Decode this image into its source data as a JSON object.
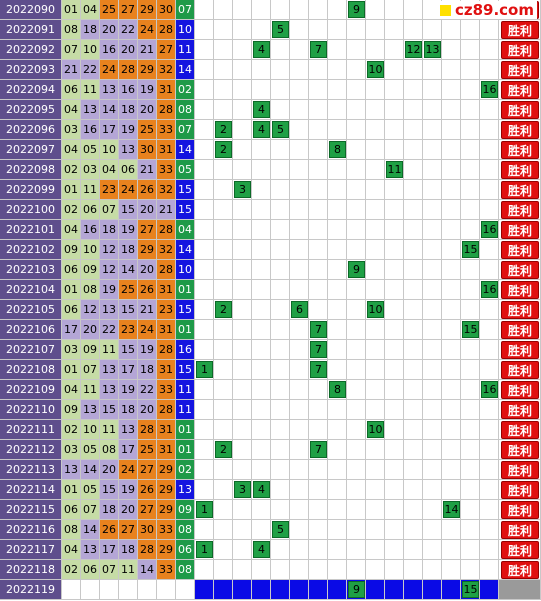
{
  "watermark": "cz89.com",
  "rows": [
    {
      "period": "2022090",
      "numbers": [
        "01",
        "04",
        "25",
        "27",
        "29",
        "30",
        "07"
      ],
      "marks": [
        "9"
      ],
      "result": "胜利"
    },
    {
      "period": "2022091",
      "numbers": [
        "08",
        "18",
        "20",
        "22",
        "24",
        "28",
        "10"
      ],
      "marks": [
        "5"
      ],
      "result": "胜利"
    },
    {
      "period": "2022092",
      "numbers": [
        "07",
        "10",
        "16",
        "20",
        "21",
        "27",
        "11"
      ],
      "marks": [
        "4",
        "7",
        "12",
        "13"
      ],
      "result": "胜利"
    },
    {
      "period": "2022093",
      "numbers": [
        "21",
        "22",
        "24",
        "28",
        "29",
        "32",
        "14"
      ],
      "marks": [
        "10"
      ],
      "result": "胜利"
    },
    {
      "period": "2022094",
      "numbers": [
        "06",
        "11",
        "13",
        "16",
        "19",
        "31",
        "02"
      ],
      "marks": [
        "16"
      ],
      "result": "胜利"
    },
    {
      "period": "2022095",
      "numbers": [
        "04",
        "13",
        "14",
        "18",
        "20",
        "28",
        "08"
      ],
      "marks": [
        "4"
      ],
      "result": "胜利"
    },
    {
      "period": "2022096",
      "numbers": [
        "03",
        "16",
        "17",
        "19",
        "25",
        "33",
        "07"
      ],
      "marks": [
        "2",
        "4",
        "5"
      ],
      "result": "胜利"
    },
    {
      "period": "2022097",
      "numbers": [
        "04",
        "05",
        "10",
        "13",
        "30",
        "31",
        "14"
      ],
      "marks": [
        "2",
        "8"
      ],
      "result": "胜利"
    },
    {
      "period": "2022098",
      "numbers": [
        "02",
        "03",
        "04",
        "06",
        "21",
        "33",
        "05"
      ],
      "marks": [
        "11"
      ],
      "result": "胜利"
    },
    {
      "period": "2022099",
      "numbers": [
        "01",
        "11",
        "23",
        "24",
        "26",
        "32",
        "15"
      ],
      "marks": [
        "3"
      ],
      "result": "胜利"
    },
    {
      "period": "2022100",
      "numbers": [
        "02",
        "06",
        "07",
        "15",
        "20",
        "21",
        "15"
      ],
      "marks": [],
      "result": "胜利"
    },
    {
      "period": "2022101",
      "numbers": [
        "04",
        "16",
        "18",
        "19",
        "27",
        "28",
        "04"
      ],
      "marks": [
        "16"
      ],
      "result": "胜利"
    },
    {
      "period": "2022102",
      "numbers": [
        "09",
        "10",
        "12",
        "18",
        "29",
        "32",
        "14"
      ],
      "marks": [
        "15"
      ],
      "result": "胜利"
    },
    {
      "period": "2022103",
      "numbers": [
        "06",
        "09",
        "12",
        "14",
        "20",
        "28",
        "10"
      ],
      "marks": [
        "9"
      ],
      "result": "胜利"
    },
    {
      "period": "2022104",
      "numbers": [
        "01",
        "08",
        "19",
        "25",
        "26",
        "31",
        "01"
      ],
      "marks": [
        "16"
      ],
      "result": "胜利"
    },
    {
      "period": "2022105",
      "numbers": [
        "06",
        "12",
        "13",
        "15",
        "21",
        "23",
        "15"
      ],
      "marks": [
        "2",
        "6",
        "10"
      ],
      "result": "胜利"
    },
    {
      "period": "2022106",
      "numbers": [
        "17",
        "20",
        "22",
        "23",
        "24",
        "31",
        "01"
      ],
      "marks": [
        "7",
        "15"
      ],
      "result": "胜利"
    },
    {
      "period": "2022107",
      "numbers": [
        "03",
        "09",
        "11",
        "15",
        "19",
        "28",
        "16"
      ],
      "marks": [
        "7"
      ],
      "result": "胜利"
    },
    {
      "period": "2022108",
      "numbers": [
        "01",
        "07",
        "13",
        "17",
        "18",
        "31",
        "15"
      ],
      "marks": [
        "1",
        "7"
      ],
      "result": "胜利"
    },
    {
      "period": "2022109",
      "numbers": [
        "04",
        "11",
        "13",
        "19",
        "22",
        "33",
        "11"
      ],
      "marks": [
        "8",
        "16"
      ],
      "result": "胜利"
    },
    {
      "period": "2022110",
      "numbers": [
        "09",
        "13",
        "15",
        "18",
        "20",
        "28",
        "11"
      ],
      "marks": [],
      "result": "胜利"
    },
    {
      "period": "2022111",
      "numbers": [
        "02",
        "10",
        "11",
        "13",
        "28",
        "31",
        "01"
      ],
      "marks": [
        "10"
      ],
      "result": "胜利"
    },
    {
      "period": "2022112",
      "numbers": [
        "03",
        "05",
        "08",
        "17",
        "25",
        "31",
        "01"
      ],
      "marks": [
        "2",
        "7"
      ],
      "result": "胜利"
    },
    {
      "period": "2022113",
      "numbers": [
        "13",
        "14",
        "20",
        "24",
        "27",
        "29",
        "02"
      ],
      "marks": [],
      "result": "胜利"
    },
    {
      "period": "2022114",
      "numbers": [
        "01",
        "05",
        "15",
        "19",
        "26",
        "29",
        "13"
      ],
      "marks": [
        "3",
        "4"
      ],
      "result": "胜利"
    },
    {
      "period": "2022115",
      "numbers": [
        "06",
        "07",
        "18",
        "20",
        "27",
        "29",
        "09"
      ],
      "marks": [
        "1",
        "14"
      ],
      "result": "胜利"
    },
    {
      "period": "2022116",
      "numbers": [
        "08",
        "14",
        "26",
        "27",
        "30",
        "33",
        "08"
      ],
      "marks": [
        "5"
      ],
      "result": "胜利"
    },
    {
      "period": "2022117",
      "numbers": [
        "04",
        "13",
        "17",
        "18",
        "28",
        "29",
        "06"
      ],
      "marks": [
        "1",
        "4"
      ],
      "result": "胜利"
    },
    {
      "period": "2022118",
      "numbers": [
        "02",
        "06",
        "07",
        "11",
        "14",
        "33",
        "08"
      ],
      "marks": [],
      "result": "胜利"
    },
    {
      "period": "2022119",
      "numbers": [],
      "marks": [
        "9",
        "15"
      ]
    }
  ]
}
